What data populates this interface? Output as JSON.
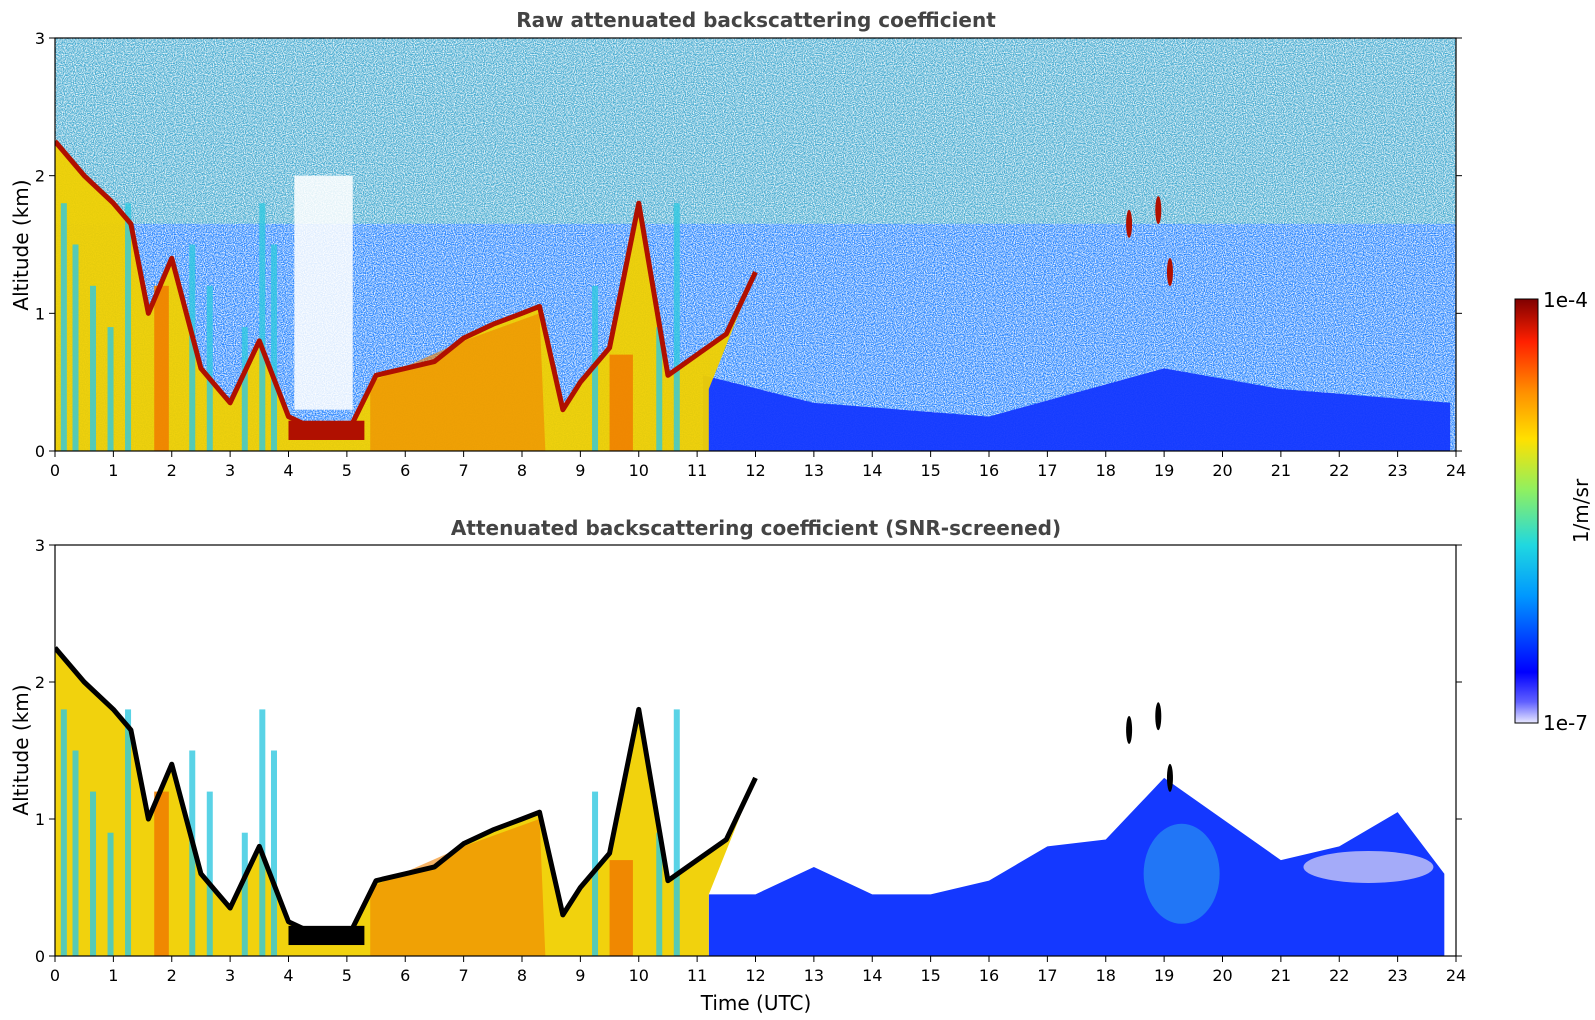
{
  "chart_data": [
    {
      "type": "heatmap",
      "title": "Raw attenuated backscattering coefficient",
      "xlabel": "",
      "ylabel": "Altitude (km)",
      "xlim": [
        0,
        24
      ],
      "ylim": [
        0,
        3
      ],
      "x_ticks": [
        0,
        1,
        2,
        3,
        4,
        5,
        6,
        7,
        8,
        9,
        10,
        11,
        12,
        13,
        14,
        15,
        16,
        17,
        18,
        19,
        20,
        21,
        22,
        23,
        24
      ],
      "y_ticks": [
        0,
        1,
        2,
        3
      ],
      "cloud_top_layer": {
        "x": [
          0,
          0.5,
          1.0,
          1.3,
          1.6,
          2.0,
          2.5,
          3.0,
          3.5,
          4.0,
          4.5,
          5.0,
          5.5,
          6.0,
          6.5,
          7.0,
          7.5,
          8.0,
          8.3,
          8.7,
          9.0,
          9.5,
          10.0,
          10.5,
          11.0,
          11.5,
          12.0
        ],
        "y": [
          2.25,
          2.0,
          1.8,
          1.65,
          1.0,
          1.4,
          0.6,
          0.35,
          0.8,
          0.25,
          0.15,
          0.12,
          0.55,
          0.6,
          0.65,
          0.82,
          0.92,
          1.0,
          1.05,
          0.3,
          0.5,
          0.75,
          1.8,
          0.55,
          0.7,
          0.85,
          1.3
        ]
      },
      "isolated_clouds": [
        {
          "x": 18.4,
          "y": 1.65
        },
        {
          "x": 18.9,
          "y": 1.75
        },
        {
          "x": 19.1,
          "y": 1.3
        }
      ]
    },
    {
      "type": "heatmap",
      "title": "Attenuated backscattering coefficient (SNR-screened)",
      "xlabel": "Time (UTC)",
      "ylabel": "Altitude (km)",
      "xlim": [
        0,
        24
      ],
      "ylim": [
        0,
        3
      ],
      "x_ticks": [
        0,
        1,
        2,
        3,
        4,
        5,
        6,
        7,
        8,
        9,
        10,
        11,
        12,
        13,
        14,
        15,
        16,
        17,
        18,
        19,
        20,
        21,
        22,
        23,
        24
      ],
      "y_ticks": [
        0,
        1,
        2,
        3
      ],
      "cloud_top_layer": {
        "x": [
          0,
          0.5,
          1.0,
          1.3,
          1.6,
          2.0,
          2.5,
          3.0,
          3.5,
          4.0,
          4.5,
          5.0,
          5.5,
          6.0,
          6.5,
          7.0,
          7.5,
          8.0,
          8.3,
          8.7,
          9.0,
          9.5,
          10.0,
          10.5,
          11.0,
          11.5,
          12.0
        ],
        "y": [
          2.25,
          2.0,
          1.8,
          1.65,
          1.0,
          1.4,
          0.6,
          0.35,
          0.8,
          0.25,
          0.15,
          0.12,
          0.55,
          0.6,
          0.65,
          0.82,
          0.92,
          1.0,
          1.05,
          0.3,
          0.5,
          0.75,
          1.8,
          0.55,
          0.7,
          0.85,
          1.3
        ]
      },
      "boundary_layer_top": {
        "x": [
          11.2,
          12,
          13,
          14,
          15,
          16,
          17,
          18,
          19,
          20,
          21,
          22,
          23,
          23.8
        ],
        "y": [
          0.45,
          0.45,
          0.65,
          0.45,
          0.45,
          0.55,
          0.8,
          0.85,
          1.3,
          1.0,
          0.7,
          0.8,
          1.05,
          0.6
        ]
      }
    }
  ],
  "colorbar": {
    "label": "1/m/sr",
    "max_label": "1e-4",
    "min_label": "1e-7",
    "range": [
      1e-07,
      0.0001
    ],
    "scale": "log",
    "colors": [
      "#e8e8ff",
      "#0000ff",
      "#00a8ff",
      "#30e0c0",
      "#a0f060",
      "#ffe000",
      "#ff9000",
      "#ff2000",
      "#800000"
    ]
  },
  "style_colors": {
    "title": "#444444",
    "low": "#1438ff",
    "cyan": "#30c8e0",
    "yellow": "#f0d000",
    "orange": "#f08000",
    "red": "#b01000",
    "black_layer": "#000000"
  }
}
